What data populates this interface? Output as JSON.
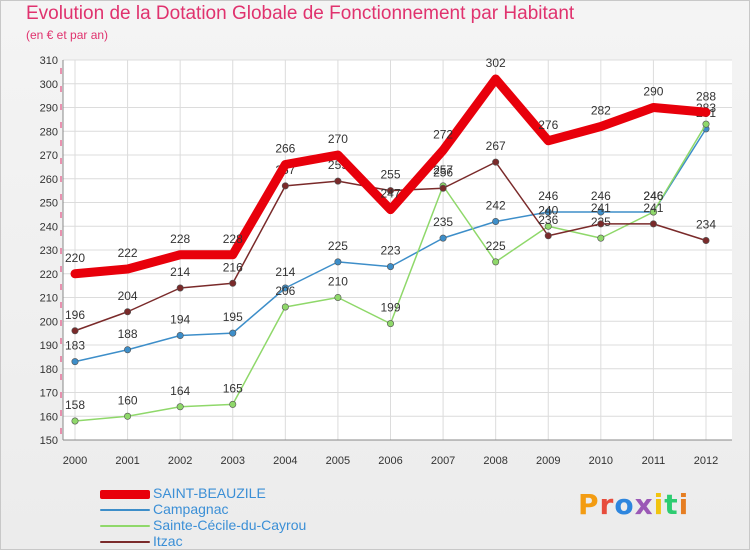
{
  "header": {
    "title": "Evolution de la Dotation Globale de Fonctionnement par Habitant",
    "subtitle": "(en € et par an)"
  },
  "logo": {
    "text": "Proxiti",
    "colors": [
      "#f39c12",
      "#e74c3c",
      "#2e86de",
      "#9b59b6",
      "#f1c40f",
      "#2ecc71",
      "#e67e22"
    ]
  },
  "chart_data": {
    "type": "line",
    "x": [
      "2000",
      "2001",
      "2002",
      "2003",
      "2004",
      "2005",
      "2006",
      "2007",
      "2008",
      "2009",
      "2010",
      "2011",
      "2012"
    ],
    "ylim": [
      150,
      310
    ],
    "yticks": [
      150,
      160,
      170,
      180,
      190,
      200,
      210,
      220,
      230,
      240,
      250,
      260,
      270,
      280,
      290,
      300,
      310
    ],
    "grid": true,
    "legend_position": "bottom-left",
    "series": [
      {
        "name": "SAINT-BEAUZILE",
        "color": "#e8000b",
        "thick": true,
        "values": [
          220,
          222,
          228,
          228,
          266,
          270,
          247,
          272,
          302,
          276,
          282,
          290,
          288
        ],
        "labels": [
          "220",
          "222",
          "228",
          "228",
          "266",
          "270",
          "247",
          "272",
          "302",
          "276",
          "282",
          "290",
          "288"
        ]
      },
      {
        "name": "Campagnac",
        "color": "#3d8ec9",
        "thick": false,
        "values": [
          183,
          188,
          194,
          195,
          214,
          225,
          223,
          235,
          242,
          246,
          246,
          246,
          281
        ],
        "labels": [
          "183",
          "188",
          "194",
          "195",
          "214",
          "225",
          "223",
          "235",
          "242",
          "246",
          "246",
          "246",
          "281"
        ]
      },
      {
        "name": "Sainte-Cécile-du-Cayrou",
        "color": "#8fd86a",
        "thick": false,
        "values": [
          158,
          160,
          164,
          165,
          206,
          210,
          199,
          257,
          225,
          240,
          235,
          246,
          283
        ],
        "labels": [
          "158",
          "160",
          "164",
          "165",
          "206",
          "210",
          "199",
          "257",
          "225",
          "240",
          "235",
          "246",
          "283"
        ]
      },
      {
        "name": "Itzac",
        "color": "#7a2a2a",
        "thick": false,
        "values": [
          196,
          204,
          214,
          216,
          257,
          259,
          255,
          256,
          267,
          236,
          241,
          241,
          234
        ],
        "labels": [
          "196",
          "204",
          "214",
          "216",
          "257",
          "259",
          "255",
          "256",
          "267",
          "236",
          "241",
          "241",
          "234"
        ]
      }
    ]
  }
}
